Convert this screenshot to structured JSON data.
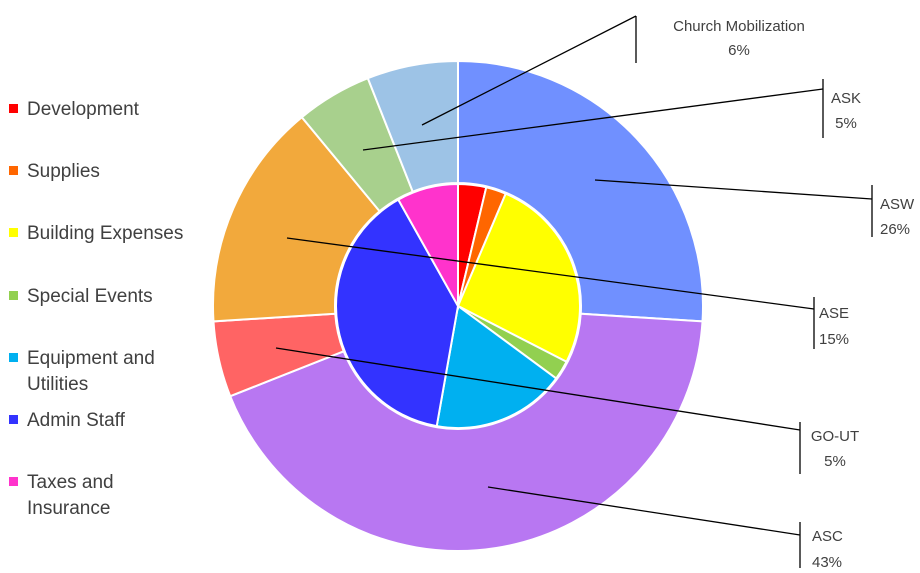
{
  "chart_data": {
    "type": "pie",
    "variant": "double-donut",
    "legend": {
      "placement": "left",
      "entries": [
        {
          "label": "Development",
          "color": "#ff0000"
        },
        {
          "label": "Supplies",
          "color": "#ff6600"
        },
        {
          "label": "Building Expenses",
          "color": "#ffff00"
        },
        {
          "label": "Special Events",
          "color": "#92d050"
        },
        {
          "label": "Equipment and Utilities",
          "color": "#00b0f0"
        },
        {
          "label": "Admin Staff",
          "color": "#3333ff"
        },
        {
          "label": "Taxes and Insurance",
          "color": "#ff33cc"
        }
      ]
    },
    "outer_ring": [
      {
        "label": "ASW",
        "value": 26,
        "display": "26%",
        "color": "#7090ff"
      },
      {
        "label": "ASC",
        "value": 43,
        "display": "43%",
        "color": "#b877f2"
      },
      {
        "label": "GO-UT",
        "value": 5,
        "display": "5%",
        "color": "#ff6464"
      },
      {
        "label": "ASE",
        "value": 15,
        "display": "15%",
        "color": "#f2a93c"
      },
      {
        "label": "ASK",
        "value": 5,
        "display": "5%",
        "color": "#a8d08d"
      },
      {
        "label": "Church Mobilization",
        "value": 6,
        "display": "6%",
        "color": "#9dc3e6"
      }
    ],
    "inner_pie": [
      {
        "label": "Development",
        "value": 3.2,
        "color": "#ff0000"
      },
      {
        "label": "Supplies",
        "value": 2.3,
        "color": "#ff6600"
      },
      {
        "label": "Building Expenses",
        "value": 22.5,
        "color": "#ffff00"
      },
      {
        "label": "Special Events",
        "value": 2.2,
        "color": "#92d050"
      },
      {
        "label": "Equipment and Utilities",
        "value": 15.2,
        "color": "#00b0f0"
      },
      {
        "label": "Admin Staff",
        "value": 33.6,
        "color": "#3333ff"
      },
      {
        "label": "Taxes and Insurance",
        "value": 7.0,
        "color": "#ff33cc"
      }
    ]
  }
}
